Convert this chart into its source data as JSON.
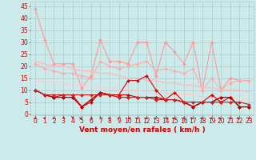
{
  "x": [
    0,
    1,
    2,
    3,
    4,
    5,
    6,
    7,
    8,
    9,
    10,
    11,
    12,
    13,
    14,
    15,
    16,
    17,
    18,
    19,
    20,
    21,
    22,
    23
  ],
  "background_color": "#cceaea",
  "grid_color": "#aacccc",
  "xlabel": "Vent moyen/en rafales ( km/h )",
  "xlabel_color": "#cc0000",
  "xlabel_fontsize": 6.5,
  "yticks": [
    0,
    5,
    10,
    15,
    20,
    25,
    30,
    35,
    40,
    45
  ],
  "ylim": [
    -0.5,
    47
  ],
  "xlim": [
    -0.5,
    23.5
  ],
  "series": [
    {
      "name": "line1_light",
      "color": "#ff9999",
      "linewidth": 0.8,
      "marker": "D",
      "markersize": 2.0,
      "values": [
        44,
        31,
        21,
        21,
        21,
        11,
        16,
        31,
        22,
        22,
        21,
        30,
        30,
        16,
        30,
        26,
        21,
        30,
        10,
        30,
        10,
        15,
        14,
        14
      ]
    },
    {
      "name": "line2_light",
      "color": "#ffaaaa",
      "linewidth": 0.8,
      "marker": "D",
      "markersize": 2.0,
      "values": [
        21,
        19,
        18,
        17,
        17,
        16,
        15,
        22,
        20,
        19,
        20,
        21,
        22,
        18,
        19,
        18,
        17,
        19,
        10,
        15,
        10,
        13,
        14,
        14
      ]
    },
    {
      "name": "trend1_light",
      "color": "#ffbbbb",
      "linewidth": 1.0,
      "marker": null,
      "markersize": 0,
      "values": [
        22,
        21,
        20,
        20,
        19,
        18,
        18,
        17,
        17,
        16,
        15,
        15,
        14,
        14,
        13,
        13,
        12,
        12,
        11,
        11,
        10,
        10,
        10,
        9
      ]
    },
    {
      "name": "trend2_light",
      "color": "#ffcccc",
      "linewidth": 1.0,
      "marker": null,
      "markersize": 0,
      "values": [
        14,
        14,
        13,
        13,
        12,
        12,
        11,
        11,
        11,
        10,
        10,
        10,
        9,
        9,
        9,
        8,
        8,
        8,
        7,
        7,
        7,
        7,
        6,
        6
      ]
    },
    {
      "name": "line3_dark",
      "color": "#dd0000",
      "linewidth": 0.8,
      "marker": "D",
      "markersize": 2.0,
      "values": [
        10,
        8,
        7,
        8,
        8,
        3,
        5,
        9,
        8,
        8,
        14,
        14,
        16,
        10,
        6,
        9,
        5,
        3,
        5,
        8,
        5,
        7,
        3,
        3
      ]
    },
    {
      "name": "line4_dark",
      "color": "#cc0000",
      "linewidth": 0.8,
      "marker": "D",
      "markersize": 2.0,
      "values": [
        10,
        8,
        7,
        7,
        7,
        3,
        6,
        9,
        8,
        8,
        8,
        7,
        7,
        7,
        6,
        6,
        5,
        3,
        5,
        5,
        7,
        7,
        3,
        3
      ]
    },
    {
      "name": "line5_dark",
      "color": "#bb0000",
      "linewidth": 0.8,
      "marker": "D",
      "markersize": 2.0,
      "values": [
        10,
        8,
        7,
        7,
        7,
        3,
        6,
        9,
        8,
        7,
        7,
        7,
        7,
        7,
        6,
        6,
        5,
        3,
        5,
        5,
        7,
        7,
        3,
        3
      ]
    },
    {
      "name": "line6_dark_flat",
      "color": "#cc2222",
      "linewidth": 0.8,
      "marker": "D",
      "markersize": 2.0,
      "values": [
        10,
        8,
        8,
        8,
        8,
        8,
        8,
        8,
        8,
        7,
        7,
        7,
        7,
        6,
        6,
        6,
        5,
        5,
        5,
        5,
        5,
        5,
        5,
        4
      ]
    }
  ],
  "tick_fontsize": 5.5,
  "xtick_labels": [
    "0",
    "1",
    "2",
    "3",
    "4",
    "5",
    "6",
    "7",
    "8",
    "9",
    "10",
    "11",
    "12",
    "13",
    "14",
    "15",
    "16",
    "17",
    "18",
    "19",
    "20",
    "21",
    "22",
    "23"
  ],
  "wind_angles": [
    225,
    315,
    225,
    200,
    180,
    90,
    135,
    45,
    315,
    315,
    270,
    315,
    225,
    315,
    270,
    225,
    135,
    90,
    315,
    225,
    90,
    135,
    90,
    135
  ]
}
